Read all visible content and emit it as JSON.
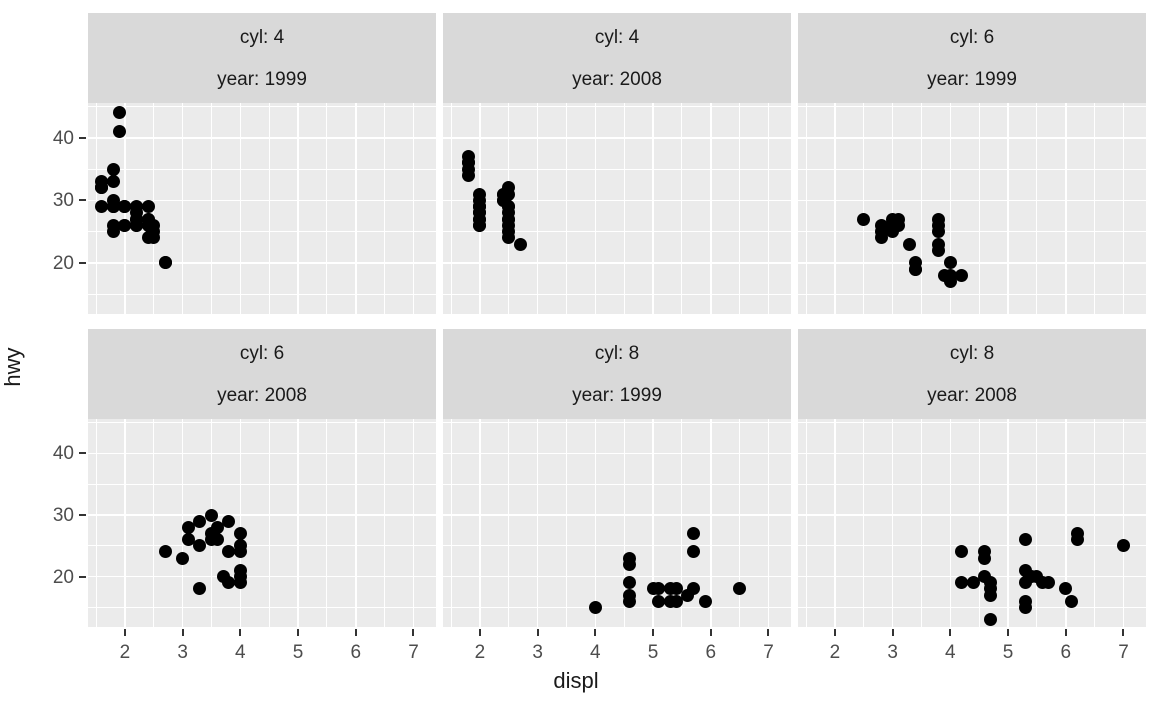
{
  "chart_data": {
    "type": "scatter",
    "title": "",
    "xlabel": "displ",
    "ylabel": "hwy",
    "x_ticks": [
      2,
      3,
      4,
      5,
      6,
      7
    ],
    "y_ticks": [
      20,
      30,
      40
    ],
    "x_minor_gridlines": [
      1.5,
      2.5,
      3.5,
      4.5,
      5.5,
      6.5
    ],
    "y_minor_gridlines": [
      15,
      25,
      35,
      45
    ],
    "xlim": [
      1.36,
      7.39
    ],
    "ylim": [
      11.8,
      45.6
    ],
    "grid": "on",
    "legend": "none",
    "facet_layout": {
      "rows": 2,
      "cols": 3
    },
    "facets": [
      {
        "row": 0,
        "col": 0,
        "cyl": 4,
        "year": 1999,
        "strip_label1": "cyl: 4",
        "strip_label2": "year: 1999",
        "points": [
          [
            1.6,
            33
          ],
          [
            1.6,
            32
          ],
          [
            1.6,
            32
          ],
          [
            1.6,
            32
          ],
          [
            1.6,
            29
          ],
          [
            1.8,
            35
          ],
          [
            1.8,
            33
          ],
          [
            1.8,
            30
          ],
          [
            1.8,
            29
          ],
          [
            1.8,
            29
          ],
          [
            1.8,
            29
          ],
          [
            1.8,
            29
          ],
          [
            1.8,
            26
          ],
          [
            1.8,
            25
          ],
          [
            1.9,
            44
          ],
          [
            1.9,
            41
          ],
          [
            2.0,
            29
          ],
          [
            2.0,
            29
          ],
          [
            2.0,
            29
          ],
          [
            2.0,
            26
          ],
          [
            2.0,
            26
          ],
          [
            2.2,
            29
          ],
          [
            2.2,
            28
          ],
          [
            2.2,
            27
          ],
          [
            2.2,
            27
          ],
          [
            2.2,
            26
          ],
          [
            2.2,
            26
          ],
          [
            2.4,
            29
          ],
          [
            2.4,
            27
          ],
          [
            2.4,
            27
          ],
          [
            2.4,
            26
          ],
          [
            2.4,
            24
          ],
          [
            2.5,
            26
          ],
          [
            2.5,
            25
          ],
          [
            2.5,
            24
          ],
          [
            2.7,
            20
          ],
          [
            2.7,
            20
          ]
        ]
      },
      {
        "row": 0,
        "col": 1,
        "cyl": 4,
        "year": 2008,
        "strip_label1": "cyl: 4",
        "strip_label2": "year: 2008",
        "points": [
          [
            1.8,
            37
          ],
          [
            1.8,
            36
          ],
          [
            1.8,
            36
          ],
          [
            1.8,
            35
          ],
          [
            1.8,
            34
          ],
          [
            2.0,
            31
          ],
          [
            2.0,
            30
          ],
          [
            2.0,
            29
          ],
          [
            2.0,
            29
          ],
          [
            2.0,
            29
          ],
          [
            2.0,
            28
          ],
          [
            2.0,
            28
          ],
          [
            2.0,
            27
          ],
          [
            2.0,
            27
          ],
          [
            2.0,
            26
          ],
          [
            2.0,
            26
          ],
          [
            2.4,
            31
          ],
          [
            2.4,
            31
          ],
          [
            2.4,
            30
          ],
          [
            2.4,
            30
          ],
          [
            2.5,
            32
          ],
          [
            2.5,
            31
          ],
          [
            2.5,
            29
          ],
          [
            2.5,
            29
          ],
          [
            2.5,
            28
          ],
          [
            2.5,
            27
          ],
          [
            2.5,
            27
          ],
          [
            2.5,
            26
          ],
          [
            2.5,
            25
          ],
          [
            2.5,
            24
          ],
          [
            2.7,
            23
          ]
        ]
      },
      {
        "row": 0,
        "col": 2,
        "cyl": 6,
        "year": 1999,
        "strip_label1": "cyl: 6",
        "strip_label2": "year: 1999",
        "points": [
          [
            2.5,
            27
          ],
          [
            2.8,
            26
          ],
          [
            2.8,
            25
          ],
          [
            2.8,
            24
          ],
          [
            3.0,
            27
          ],
          [
            3.0,
            26
          ],
          [
            3.0,
            25
          ],
          [
            3.1,
            27
          ],
          [
            3.1,
            26
          ],
          [
            3.3,
            23
          ],
          [
            3.4,
            20
          ],
          [
            3.4,
            19
          ],
          [
            3.4,
            19
          ],
          [
            3.8,
            27
          ],
          [
            3.8,
            26
          ],
          [
            3.8,
            25
          ],
          [
            3.8,
            23
          ],
          [
            3.8,
            22
          ],
          [
            3.9,
            18
          ],
          [
            4.0,
            20
          ],
          [
            4.0,
            18
          ],
          [
            4.0,
            17
          ],
          [
            4.2,
            18
          ]
        ]
      },
      {
        "row": 1,
        "col": 0,
        "cyl": 6,
        "year": 2008,
        "strip_label1": "cyl: 6",
        "strip_label2": "year: 2008",
        "points": [
          [
            2.7,
            24
          ],
          [
            3.0,
            23
          ],
          [
            3.1,
            28
          ],
          [
            3.1,
            26
          ],
          [
            3.3,
            29
          ],
          [
            3.3,
            25
          ],
          [
            3.3,
            18
          ],
          [
            3.5,
            30
          ],
          [
            3.5,
            27
          ],
          [
            3.5,
            26
          ],
          [
            3.6,
            28
          ],
          [
            3.6,
            26
          ],
          [
            3.7,
            20
          ],
          [
            3.8,
            29
          ],
          [
            3.8,
            24
          ],
          [
            3.8,
            19
          ],
          [
            4.0,
            27
          ],
          [
            4.0,
            25
          ],
          [
            4.0,
            24
          ],
          [
            4.0,
            21
          ],
          [
            4.0,
            20
          ],
          [
            4.0,
            19
          ]
        ]
      },
      {
        "row": 1,
        "col": 1,
        "cyl": 8,
        "year": 1999,
        "strip_label1": "cyl: 8",
        "strip_label2": "year: 1999",
        "points": [
          [
            4.0,
            15
          ],
          [
            4.6,
            23
          ],
          [
            4.6,
            22
          ],
          [
            4.6,
            19
          ],
          [
            4.6,
            17
          ],
          [
            4.6,
            16
          ],
          [
            5.0,
            18
          ],
          [
            5.1,
            18
          ],
          [
            5.1,
            16
          ],
          [
            5.3,
            18
          ],
          [
            5.3,
            16
          ],
          [
            5.4,
            18
          ],
          [
            5.4,
            16
          ],
          [
            5.6,
            17
          ],
          [
            5.7,
            27
          ],
          [
            5.7,
            24
          ],
          [
            5.7,
            18
          ],
          [
            5.9,
            16
          ],
          [
            6.5,
            18
          ]
        ]
      },
      {
        "row": 1,
        "col": 2,
        "cyl": 8,
        "year": 2008,
        "strip_label1": "cyl: 8",
        "strip_label2": "year: 2008",
        "points": [
          [
            4.2,
            24
          ],
          [
            4.2,
            19
          ],
          [
            4.4,
            19
          ],
          [
            4.6,
            24
          ],
          [
            4.6,
            23
          ],
          [
            4.6,
            20
          ],
          [
            4.7,
            19
          ],
          [
            4.7,
            18
          ],
          [
            4.7,
            17
          ],
          [
            4.7,
            13
          ],
          [
            5.3,
            26
          ],
          [
            5.3,
            21
          ],
          [
            5.3,
            19
          ],
          [
            5.3,
            16
          ],
          [
            5.3,
            15
          ],
          [
            5.4,
            20
          ],
          [
            5.5,
            20
          ],
          [
            5.6,
            19
          ],
          [
            5.7,
            19
          ],
          [
            6.0,
            18
          ],
          [
            6.1,
            16
          ],
          [
            6.2,
            27
          ],
          [
            6.2,
            26
          ],
          [
            7.0,
            25
          ]
        ]
      }
    ]
  },
  "style": {
    "background": "#FFFFFF",
    "panel_background": "#EBEBEB",
    "strip_background": "#D9D9D9",
    "gridline_color": "#FFFFFF",
    "point_color": "#000000",
    "tick_text_color": "#4D4D4D",
    "strip_text_color": "#1A1A1A",
    "axis_title_color": "#1A1A1A",
    "tick_mark_color": "#333333"
  }
}
